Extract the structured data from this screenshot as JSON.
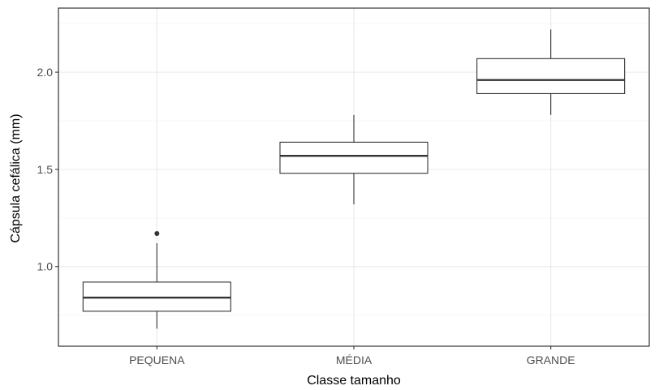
{
  "chart_data": {
    "type": "boxplot",
    "title": "",
    "xlabel": "Classe tamanho",
    "ylabel": "Cápsula cefálica (mm)",
    "categories": [
      "PEQUENA",
      "MÉDIA",
      "GRANDE"
    ],
    "ylim": [
      0.59,
      2.33
    ],
    "yticks": [
      1.0,
      1.5,
      2.0
    ],
    "ytick_labels": [
      "1.0",
      "1.5",
      "2.0"
    ],
    "grid": true,
    "legend": "none",
    "boxes": [
      {
        "category": "PEQUENA",
        "whisker_low": 0.68,
        "q1": 0.77,
        "median": 0.84,
        "q3": 0.92,
        "whisker_high": 1.12,
        "outliers": [
          1.17
        ]
      },
      {
        "category": "MÉDIA",
        "whisker_low": 1.32,
        "q1": 1.48,
        "median": 1.57,
        "q3": 1.64,
        "whisker_high": 1.78,
        "outliers": []
      },
      {
        "category": "GRANDE",
        "whisker_low": 1.78,
        "q1": 1.89,
        "median": 1.96,
        "q3": 2.07,
        "whisker_high": 2.22,
        "outliers": []
      }
    ],
    "colors": {
      "box_fill": "#ffffff",
      "box_stroke": "#333333",
      "grid_major": "#ebebeb",
      "grid_minor": "#f5f5f5",
      "panel_border": "#333333",
      "tick_text": "#4d4d4d",
      "axis_title": "#000000"
    }
  }
}
